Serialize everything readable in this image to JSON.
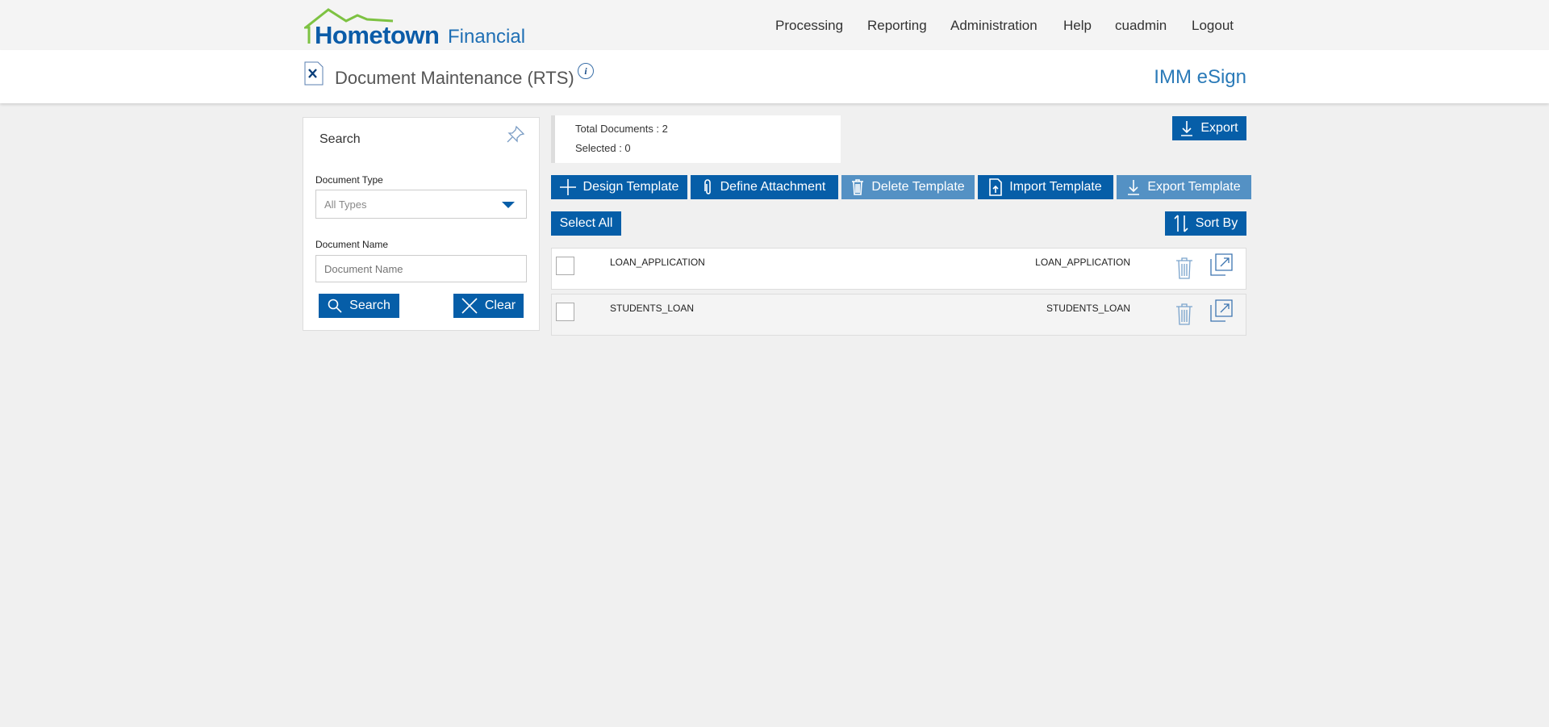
{
  "header": {
    "logo_main": "Hometown",
    "logo_sub": "Financial",
    "nav": [
      "Processing",
      "Reporting",
      "Administration",
      "Help",
      "cuadmin",
      "Logout"
    ]
  },
  "page": {
    "title": "Document Maintenance (RTS)",
    "product": "IMM eSign"
  },
  "search": {
    "title": "Search",
    "doc_type_label": "Document Type",
    "doc_type_value": "All Types",
    "doc_name_label": "Document Name",
    "doc_name_placeholder": "Document Name",
    "search_label": "Search",
    "clear_label": "Clear"
  },
  "summary": {
    "total": "Total Documents : 2",
    "selected": "Selected : 0"
  },
  "toolbar": {
    "export": "Export",
    "design": "Design Template",
    "define": "Define Attachment",
    "delete": "Delete Template",
    "import": "Import Template",
    "export_template": "Export Template",
    "select_all": "Select All",
    "sort_by": "Sort By"
  },
  "rows": [
    {
      "name": "LOAN_APPLICATION",
      "type": "LOAN_APPLICATION"
    },
    {
      "name": "STUDENTS_LOAN",
      "type": "STUDENTS_LOAN"
    }
  ],
  "colors": {
    "primary": "#065ea8",
    "disabled": "#5491c4",
    "logo_green": "#7dc242"
  }
}
